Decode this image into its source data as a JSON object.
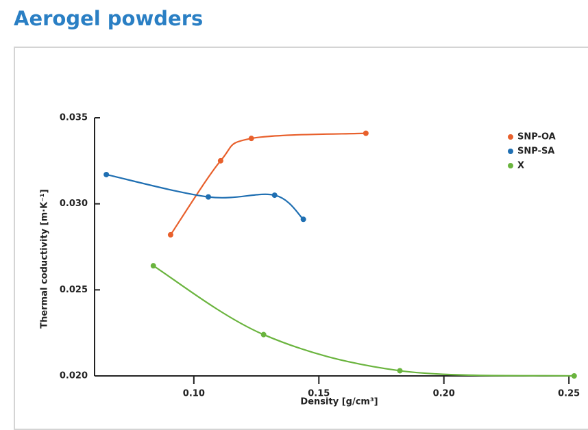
{
  "chart_data": {
    "type": "line",
    "title": "Aerogel powders",
    "x_label": "Density [g/cm³]",
    "y_label": "Thermal coductivity [m·K⁻¹]",
    "xlim": [
      0.0603,
      0.2527
    ],
    "ylim": [
      0.02,
      0.035
    ],
    "xticks": [
      {
        "value": 0.1,
        "label": "0.10"
      },
      0.15,
      {
        "value": 0.2,
        "label": "0.20"
      },
      0.25
    ],
    "yticks": [
      {
        "value": 0.02,
        "label": "0.020"
      },
      0.025,
      {
        "value": 0.03,
        "label": "0.030"
      },
      0.035
    ],
    "legend": "upper right",
    "series": [
      {
        "name": "SNP-OA",
        "color": "#e8602c",
        "x": [
          0.0907,
          0.1107,
          0.123,
          0.1688
        ],
        "values": [
          0.0282,
          0.0325,
          0.0338,
          0.0341
        ]
      },
      {
        "name": "SNP-SA",
        "color": "#1f6fb2",
        "x": [
          0.065,
          0.1058,
          0.1323,
          0.1438
        ],
        "values": [
          0.0317,
          0.0304,
          0.0305,
          0.0291
        ]
      },
      {
        "name": "X",
        "color": "#6ab43e",
        "x": [
          0.0838,
          0.1279,
          0.1824,
          0.2521
        ],
        "values": [
          0.0264,
          0.0224,
          0.0203,
          0.02
        ]
      }
    ]
  }
}
